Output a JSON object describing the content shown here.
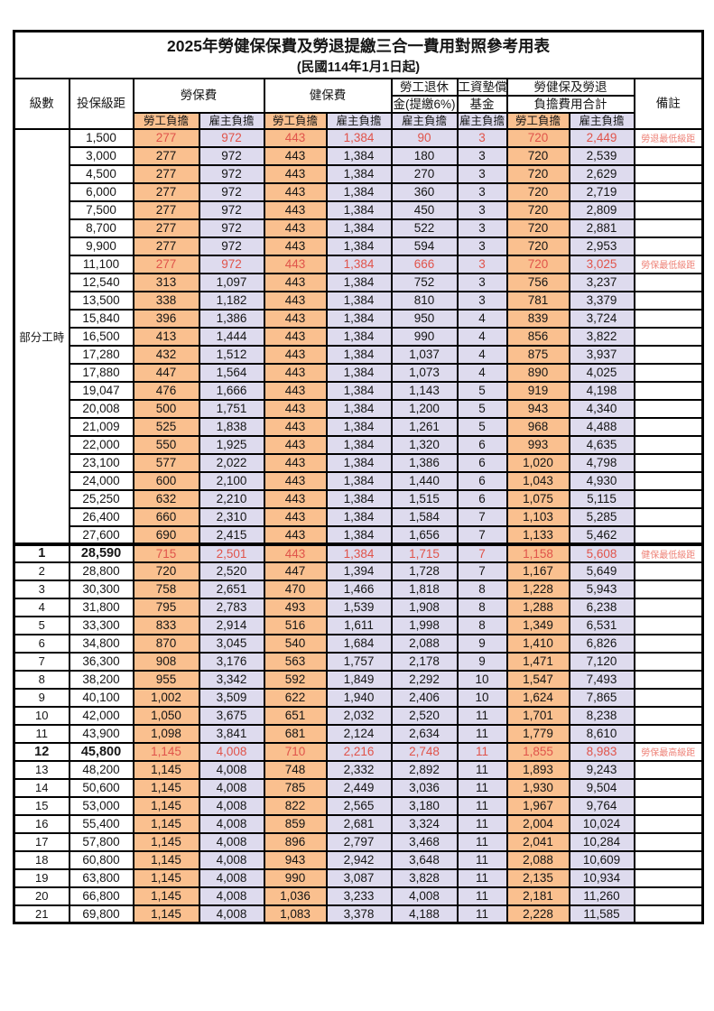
{
  "title": {
    "line1": "2025年勞健保保費及勞退提繳三合一費用對照參考用表",
    "line2": "(民國114年1月1日起)"
  },
  "header": {
    "level": "級數",
    "bracket": "投保級距",
    "labor": "勞保費",
    "health": "健保費",
    "pension_l1": "勞工退休",
    "pension_l2": "金(提繳6%)",
    "wage_l1": "工資墊償",
    "wage_l2": "基金",
    "total_l1": "勞健保及勞退",
    "total_l2": "負擔費用合計",
    "remark": "備註",
    "sub_employee": "勞工負擔",
    "sub_employer": "雇主負擔"
  },
  "colors": {
    "employee_bg": "#FAC08F",
    "employer_bg": "#DEDBEE",
    "highlight_text": "#E0544B",
    "remark_text": "#EE8277",
    "border": "#000000"
  },
  "table": {
    "part_time_label": "部分工時",
    "part_time_span": 23,
    "rows": [
      {
        "level": "",
        "bracket": "1,500",
        "cells": [
          "277",
          "972",
          "443",
          "1,384",
          "90",
          "3",
          "720",
          "2,449"
        ],
        "remark": "勞退最低級距",
        "highlight": true
      },
      {
        "level": "",
        "bracket": "3,000",
        "cells": [
          "277",
          "972",
          "443",
          "1,384",
          "180",
          "3",
          "720",
          "2,539"
        ],
        "remark": ""
      },
      {
        "level": "",
        "bracket": "4,500",
        "cells": [
          "277",
          "972",
          "443",
          "1,384",
          "270",
          "3",
          "720",
          "2,629"
        ],
        "remark": ""
      },
      {
        "level": "",
        "bracket": "6,000",
        "cells": [
          "277",
          "972",
          "443",
          "1,384",
          "360",
          "3",
          "720",
          "2,719"
        ],
        "remark": ""
      },
      {
        "level": "",
        "bracket": "7,500",
        "cells": [
          "277",
          "972",
          "443",
          "1,384",
          "450",
          "3",
          "720",
          "2,809"
        ],
        "remark": ""
      },
      {
        "level": "",
        "bracket": "8,700",
        "cells": [
          "277",
          "972",
          "443",
          "1,384",
          "522",
          "3",
          "720",
          "2,881"
        ],
        "remark": ""
      },
      {
        "level": "",
        "bracket": "9,900",
        "cells": [
          "277",
          "972",
          "443",
          "1,384",
          "594",
          "3",
          "720",
          "2,953"
        ],
        "remark": ""
      },
      {
        "level": "",
        "bracket": "11,100",
        "cells": [
          "277",
          "972",
          "443",
          "1,384",
          "666",
          "3",
          "720",
          "3,025"
        ],
        "remark": "勞保最低級距",
        "highlight": true
      },
      {
        "level": "",
        "bracket": "12,540",
        "cells": [
          "313",
          "1,097",
          "443",
          "1,384",
          "752",
          "3",
          "756",
          "3,237"
        ],
        "remark": ""
      },
      {
        "level": "",
        "bracket": "13,500",
        "cells": [
          "338",
          "1,182",
          "443",
          "1,384",
          "810",
          "3",
          "781",
          "3,379"
        ],
        "remark": ""
      },
      {
        "level": "",
        "bracket": "15,840",
        "cells": [
          "396",
          "1,386",
          "443",
          "1,384",
          "950",
          "4",
          "839",
          "3,724"
        ],
        "remark": ""
      },
      {
        "level": "",
        "bracket": "16,500",
        "cells": [
          "413",
          "1,444",
          "443",
          "1,384",
          "990",
          "4",
          "856",
          "3,822"
        ],
        "remark": ""
      },
      {
        "level": "",
        "bracket": "17,280",
        "cells": [
          "432",
          "1,512",
          "443",
          "1,384",
          "1,037",
          "4",
          "875",
          "3,937"
        ],
        "remark": ""
      },
      {
        "level": "",
        "bracket": "17,880",
        "cells": [
          "447",
          "1,564",
          "443",
          "1,384",
          "1,073",
          "4",
          "890",
          "4,025"
        ],
        "remark": ""
      },
      {
        "level": "",
        "bracket": "19,047",
        "cells": [
          "476",
          "1,666",
          "443",
          "1,384",
          "1,143",
          "5",
          "919",
          "4,198"
        ],
        "remark": ""
      },
      {
        "level": "",
        "bracket": "20,008",
        "cells": [
          "500",
          "1,751",
          "443",
          "1,384",
          "1,200",
          "5",
          "943",
          "4,340"
        ],
        "remark": ""
      },
      {
        "level": "",
        "bracket": "21,009",
        "cells": [
          "525",
          "1,838",
          "443",
          "1,384",
          "1,261",
          "5",
          "968",
          "4,488"
        ],
        "remark": ""
      },
      {
        "level": "",
        "bracket": "22,000",
        "cells": [
          "550",
          "1,925",
          "443",
          "1,384",
          "1,320",
          "6",
          "993",
          "4,635"
        ],
        "remark": ""
      },
      {
        "level": "",
        "bracket": "23,100",
        "cells": [
          "577",
          "2,022",
          "443",
          "1,384",
          "1,386",
          "6",
          "1,020",
          "4,798"
        ],
        "remark": ""
      },
      {
        "level": "",
        "bracket": "24,000",
        "cells": [
          "600",
          "2,100",
          "443",
          "1,384",
          "1,440",
          "6",
          "1,043",
          "4,930"
        ],
        "remark": ""
      },
      {
        "level": "",
        "bracket": "25,250",
        "cells": [
          "632",
          "2,210",
          "443",
          "1,384",
          "1,515",
          "6",
          "1,075",
          "5,115"
        ],
        "remark": ""
      },
      {
        "level": "",
        "bracket": "26,400",
        "cells": [
          "660",
          "2,310",
          "443",
          "1,384",
          "1,584",
          "7",
          "1,103",
          "5,285"
        ],
        "remark": ""
      },
      {
        "level": "",
        "bracket": "27,600",
        "cells": [
          "690",
          "2,415",
          "443",
          "1,384",
          "1,656",
          "7",
          "1,133",
          "5,462"
        ],
        "remark": ""
      },
      {
        "level": "1",
        "bracket": "28,590",
        "cells": [
          "715",
          "2,501",
          "443",
          "1,384",
          "1,715",
          "7",
          "1,158",
          "5,608"
        ],
        "remark": "健保最低級距",
        "highlight": true,
        "bold": true,
        "section_start": true
      },
      {
        "level": "2",
        "bracket": "28,800",
        "cells": [
          "720",
          "2,520",
          "447",
          "1,394",
          "1,728",
          "7",
          "1,167",
          "5,649"
        ],
        "remark": ""
      },
      {
        "level": "3",
        "bracket": "30,300",
        "cells": [
          "758",
          "2,651",
          "470",
          "1,466",
          "1,818",
          "8",
          "1,228",
          "5,943"
        ],
        "remark": ""
      },
      {
        "level": "4",
        "bracket": "31,800",
        "cells": [
          "795",
          "2,783",
          "493",
          "1,539",
          "1,908",
          "8",
          "1,288",
          "6,238"
        ],
        "remark": ""
      },
      {
        "level": "5",
        "bracket": "33,300",
        "cells": [
          "833",
          "2,914",
          "516",
          "1,611",
          "1,998",
          "8",
          "1,349",
          "6,531"
        ],
        "remark": ""
      },
      {
        "level": "6",
        "bracket": "34,800",
        "cells": [
          "870",
          "3,045",
          "540",
          "1,684",
          "2,088",
          "9",
          "1,410",
          "6,826"
        ],
        "remark": ""
      },
      {
        "level": "7",
        "bracket": "36,300",
        "cells": [
          "908",
          "3,176",
          "563",
          "1,757",
          "2,178",
          "9",
          "1,471",
          "7,120"
        ],
        "remark": ""
      },
      {
        "level": "8",
        "bracket": "38,200",
        "cells": [
          "955",
          "3,342",
          "592",
          "1,849",
          "2,292",
          "10",
          "1,547",
          "7,493"
        ],
        "remark": ""
      },
      {
        "level": "9",
        "bracket": "40,100",
        "cells": [
          "1,002",
          "3,509",
          "622",
          "1,940",
          "2,406",
          "10",
          "1,624",
          "7,865"
        ],
        "remark": ""
      },
      {
        "level": "10",
        "bracket": "42,000",
        "cells": [
          "1,050",
          "3,675",
          "651",
          "2,032",
          "2,520",
          "11",
          "1,701",
          "8,238"
        ],
        "remark": ""
      },
      {
        "level": "11",
        "bracket": "43,900",
        "cells": [
          "1,098",
          "3,841",
          "681",
          "2,124",
          "2,634",
          "11",
          "1,779",
          "8,610"
        ],
        "remark": ""
      },
      {
        "level": "12",
        "bracket": "45,800",
        "cells": [
          "1,145",
          "4,008",
          "710",
          "2,216",
          "2,748",
          "11",
          "1,855",
          "8,983"
        ],
        "remark": "勞保最高級距",
        "highlight": true,
        "bold": true
      },
      {
        "level": "13",
        "bracket": "48,200",
        "cells": [
          "1,145",
          "4,008",
          "748",
          "2,332",
          "2,892",
          "11",
          "1,893",
          "9,243"
        ],
        "remark": ""
      },
      {
        "level": "14",
        "bracket": "50,600",
        "cells": [
          "1,145",
          "4,008",
          "785",
          "2,449",
          "3,036",
          "11",
          "1,930",
          "9,504"
        ],
        "remark": ""
      },
      {
        "level": "15",
        "bracket": "53,000",
        "cells": [
          "1,145",
          "4,008",
          "822",
          "2,565",
          "3,180",
          "11",
          "1,967",
          "9,764"
        ],
        "remark": ""
      },
      {
        "level": "16",
        "bracket": "55,400",
        "cells": [
          "1,145",
          "4,008",
          "859",
          "2,681",
          "3,324",
          "11",
          "2,004",
          "10,024"
        ],
        "remark": ""
      },
      {
        "level": "17",
        "bracket": "57,800",
        "cells": [
          "1,145",
          "4,008",
          "896",
          "2,797",
          "3,468",
          "11",
          "2,041",
          "10,284"
        ],
        "remark": ""
      },
      {
        "level": "18",
        "bracket": "60,800",
        "cells": [
          "1,145",
          "4,008",
          "943",
          "2,942",
          "3,648",
          "11",
          "2,088",
          "10,609"
        ],
        "remark": ""
      },
      {
        "level": "19",
        "bracket": "63,800",
        "cells": [
          "1,145",
          "4,008",
          "990",
          "3,087",
          "3,828",
          "11",
          "2,135",
          "10,934"
        ],
        "remark": ""
      },
      {
        "level": "20",
        "bracket": "66,800",
        "cells": [
          "1,145",
          "4,008",
          "1,036",
          "3,233",
          "4,008",
          "11",
          "2,181",
          "11,260"
        ],
        "remark": ""
      },
      {
        "level": "21",
        "bracket": "69,800",
        "cells": [
          "1,145",
          "4,008",
          "1,083",
          "3,378",
          "4,188",
          "11",
          "2,228",
          "11,585"
        ],
        "remark": ""
      }
    ]
  }
}
